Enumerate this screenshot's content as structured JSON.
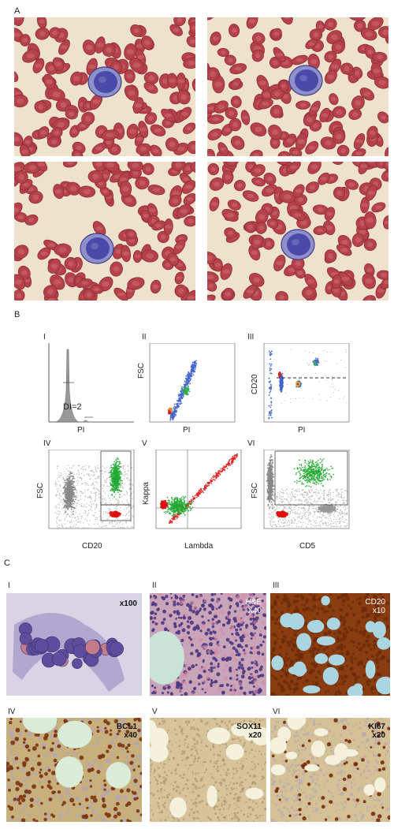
{
  "panel_labels": {
    "a": "A",
    "b": "B",
    "c": "C"
  },
  "flow": {
    "I": {
      "num": "I",
      "x": "PI",
      "annot": "DI=2"
    },
    "II": {
      "num": "II",
      "x": "PI",
      "y": "FSC"
    },
    "III": {
      "num": "III",
      "x": "PI",
      "y": "CD20"
    },
    "IV": {
      "num": "IV",
      "x": "CD20",
      "y": "FSC"
    },
    "V": {
      "num": "V",
      "x": "Lambda",
      "y": "Kappa"
    },
    "VI": {
      "num": "VI",
      "x": "CD5",
      "y": "FSC"
    }
  },
  "histo": {
    "I": {
      "num": "I",
      "tag": "x100"
    },
    "II": {
      "num": "II",
      "tag1": "H&E",
      "tag2": "X40"
    },
    "III": {
      "num": "III",
      "tag1": "CD20",
      "tag2": "x10"
    },
    "IV": {
      "num": "IV",
      "tag1": "BCL1",
      "tag2": "x40"
    },
    "V": {
      "num": "V",
      "tag1": "SOX11",
      "tag2": "x20"
    },
    "VI": {
      "num": "VI",
      "tag1": "KI67",
      "tag2": "x20"
    }
  },
  "colors": {
    "rbc": "#b5414a",
    "blast": "#4a4aa8",
    "dab": "#8a3a12",
    "hema": "#6d5aa8"
  }
}
